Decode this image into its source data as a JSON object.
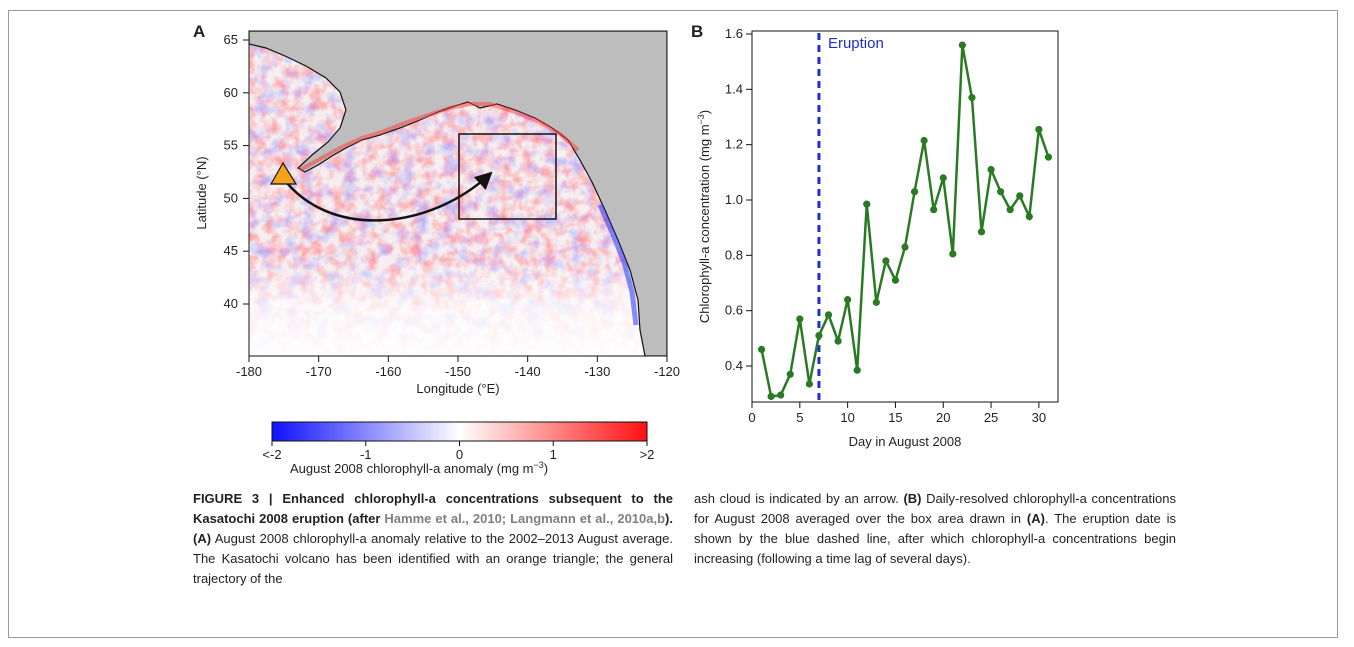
{
  "panelA": {
    "letter": "A",
    "xlabel": "Longitude (°E)",
    "ylabel": "Latitude (°N)",
    "xticks": [
      "-180",
      "-170",
      "-160",
      "-150",
      "-140",
      "-130",
      "-120"
    ],
    "yticks": [
      "65",
      "60",
      "55",
      "50",
      "45",
      "40"
    ],
    "colorbar": {
      "ticks": [
        "<-2",
        "-1",
        "0",
        "1",
        ">2"
      ],
      "label": "August 2008 chlorophyll-a anomaly (mg  m",
      "label_sup": "−3",
      "label_end": ")",
      "colors": {
        "low": "#1010ff",
        "mid": "#ffffff",
        "high": "#ff1010"
      }
    },
    "colors": {
      "land": "#bdbdbd",
      "volcano": "#f5a31c"
    }
  },
  "chart_data": {
    "type": "line",
    "title": "",
    "xlabel": "Day in August 2008",
    "ylabel": "Chlorophyll-a concentration (mg m⁻³)",
    "xlim": [
      0,
      32
    ],
    "ylim": [
      0.25,
      1.6
    ],
    "xticks": [
      "0",
      "5",
      "10",
      "15",
      "20",
      "25",
      "30"
    ],
    "yticks": [
      "0.4",
      "0.6",
      "0.8",
      "1.0",
      "1.2",
      "1.4",
      "1.6"
    ],
    "series": [
      {
        "x": [
          1,
          2,
          3,
          4,
          5,
          6,
          7,
          8,
          9,
          10,
          11,
          12,
          13,
          14,
          15,
          16,
          17,
          18,
          19,
          20,
          21,
          22,
          23,
          24,
          25,
          26,
          27,
          28,
          29,
          30,
          31
        ],
        "values": [
          0.46,
          0.29,
          0.295,
          0.37,
          0.57,
          0.335,
          0.51,
          0.585,
          0.49,
          0.64,
          0.385,
          0.985,
          0.63,
          0.78,
          0.71,
          0.83,
          1.03,
          1.215,
          0.965,
          1.08,
          0.805,
          1.56,
          1.37,
          0.885,
          1.11,
          1.03,
          0.965,
          1.015,
          0.94,
          1.255,
          1.155
        ],
        "color": "#2a7a23"
      }
    ],
    "eruption": {
      "x": 7,
      "label": "Eruption",
      "color": "#1f2ed1"
    },
    "grid": false
  },
  "panelB": {
    "letter": "B",
    "ylabel_main": "Chlorophyll-a concentration (mg m",
    "ylabel_sup": "−3",
    "ylabel_end": ")"
  },
  "caption": {
    "title_1": "FIGURE 3 | Enhanced chlorophyll-a concentrations subsequent to the Kasatochi 2008 eruption (after ",
    "ref_1": "Hamme et al., 2010; Langmann et al., 2010a,b",
    "title_2": "). ",
    "a_label": "(A)",
    "a_text": " August 2008 chlorophyll-a anomaly relative to the 2002–2013 August average. The Kasatochi volcano has been identified with an orange triangle; the general trajectory of the",
    "right_1": "ash cloud is indicated by an arrow. ",
    "b_label": "(B)",
    "b_text": " Daily-resolved chlorophyll-a concentrations for August 2008 averaged over the box area drawn in ",
    "a_label2": "(A)",
    "b_text2": ". The eruption date is shown by the blue dashed line, after which chlorophyll-a concentrations begin increasing (following a time lag of several days)."
  }
}
